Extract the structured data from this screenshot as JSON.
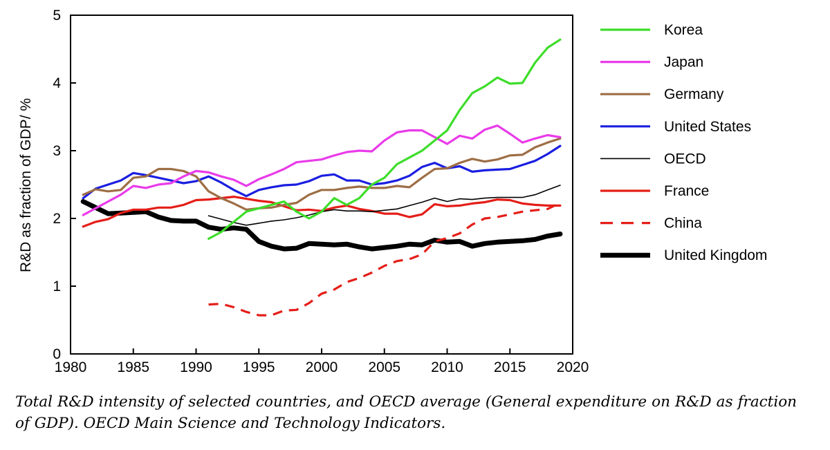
{
  "chart_data": {
    "type": "line",
    "title": "",
    "xlabel": "",
    "ylabel": "R&D as fraction of GDP/ %",
    "xlim": [
      1980,
      2020
    ],
    "ylim": [
      0,
      5
    ],
    "x_ticks": [
      "1980",
      "1985",
      "1990",
      "1995",
      "2000",
      "2005",
      "2010",
      "2015",
      "2020"
    ],
    "y_ticks": [
      "0",
      "1",
      "2",
      "3",
      "4",
      "5"
    ],
    "legend_position": "right",
    "series": [
      {
        "name": "Korea",
        "color": "#3ddd2a",
        "style": "solid",
        "width": "normal",
        "x": [
          1991,
          1992,
          1993,
          1994,
          1995,
          1996,
          1997,
          1998,
          1999,
          2000,
          2001,
          2002,
          2003,
          2004,
          2005,
          2006,
          2007,
          2008,
          2009,
          2010,
          2011,
          2012,
          2013,
          2014,
          2015,
          2016,
          2017,
          2018,
          2019
        ],
        "y": [
          1.7,
          1.8,
          1.95,
          2.1,
          2.15,
          2.2,
          2.25,
          2.1,
          2.0,
          2.1,
          2.3,
          2.2,
          2.3,
          2.5,
          2.6,
          2.8,
          2.9,
          3.0,
          3.15,
          3.3,
          3.6,
          3.85,
          3.95,
          4.08,
          3.99,
          4.0,
          4.3,
          4.52,
          4.64
        ]
      },
      {
        "name": "Japan",
        "color": "#e93be9",
        "style": "solid",
        "width": "normal",
        "x": [
          1981,
          1982,
          1983,
          1984,
          1985,
          1986,
          1987,
          1988,
          1989,
          1990,
          1991,
          1992,
          1993,
          1994,
          1995,
          1996,
          1997,
          1998,
          1999,
          2000,
          2001,
          2002,
          2003,
          2004,
          2005,
          2006,
          2007,
          2008,
          2009,
          2010,
          2011,
          2012,
          2013,
          2014,
          2015,
          2016,
          2017,
          2018,
          2019
        ],
        "y": [
          2.05,
          2.15,
          2.25,
          2.35,
          2.48,
          2.45,
          2.5,
          2.52,
          2.62,
          2.7,
          2.68,
          2.62,
          2.57,
          2.48,
          2.58,
          2.65,
          2.73,
          2.83,
          2.85,
          2.87,
          2.93,
          2.98,
          3.0,
          2.99,
          3.15,
          3.27,
          3.3,
          3.3,
          3.2,
          3.1,
          3.22,
          3.18,
          3.31,
          3.37,
          3.25,
          3.12,
          3.18,
          3.23,
          3.2
        ]
      },
      {
        "name": "Germany",
        "color": "#9e6e45",
        "style": "solid",
        "width": "normal",
        "x": [
          1981,
          1982,
          1983,
          1984,
          1985,
          1986,
          1987,
          1988,
          1989,
          1990,
          1991,
          1992,
          1993,
          1994,
          1995,
          1996,
          1997,
          1998,
          1999,
          2000,
          2001,
          2002,
          2003,
          2004,
          2005,
          2006,
          2007,
          2008,
          2009,
          2010,
          2011,
          2012,
          2013,
          2014,
          2015,
          2016,
          2017,
          2018,
          2019
        ],
        "y": [
          2.35,
          2.43,
          2.4,
          2.42,
          2.6,
          2.62,
          2.73,
          2.73,
          2.7,
          2.62,
          2.4,
          2.3,
          2.22,
          2.13,
          2.15,
          2.16,
          2.2,
          2.23,
          2.35,
          2.42,
          2.42,
          2.45,
          2.47,
          2.45,
          2.45,
          2.48,
          2.46,
          2.6,
          2.73,
          2.74,
          2.82,
          2.88,
          2.84,
          2.87,
          2.93,
          2.94,
          3.05,
          3.12,
          3.18
        ]
      },
      {
        "name": "United States",
        "color": "#1a1ee0",
        "style": "solid",
        "width": "normal",
        "x": [
          1981,
          1982,
          1983,
          1984,
          1985,
          1986,
          1987,
          1988,
          1989,
          1990,
          1991,
          1992,
          1993,
          1994,
          1995,
          1996,
          1997,
          1998,
          1999,
          2000,
          2001,
          2002,
          2003,
          2004,
          2005,
          2006,
          2007,
          2008,
          2009,
          2010,
          2011,
          2012,
          2013,
          2014,
          2015,
          2016,
          2017,
          2018,
          2019
        ],
        "y": [
          2.3,
          2.44,
          2.5,
          2.56,
          2.67,
          2.64,
          2.6,
          2.56,
          2.52,
          2.55,
          2.62,
          2.53,
          2.42,
          2.33,
          2.42,
          2.46,
          2.49,
          2.5,
          2.55,
          2.63,
          2.65,
          2.56,
          2.56,
          2.5,
          2.52,
          2.56,
          2.63,
          2.76,
          2.82,
          2.74,
          2.77,
          2.69,
          2.71,
          2.72,
          2.73,
          2.79,
          2.85,
          2.95,
          3.07
        ]
      },
      {
        "name": "OECD",
        "color": "#000000",
        "style": "solid",
        "width": "thin",
        "x": [
          1991,
          1992,
          1993,
          1994,
          1995,
          1996,
          1997,
          1998,
          1999,
          2000,
          2001,
          2002,
          2003,
          2004,
          2005,
          2006,
          2007,
          2008,
          2009,
          2010,
          2011,
          2012,
          2013,
          2014,
          2015,
          2016,
          2017,
          2018,
          2019
        ],
        "y": [
          2.04,
          1.99,
          1.94,
          1.9,
          1.93,
          1.96,
          1.98,
          2.01,
          2.05,
          2.1,
          2.13,
          2.11,
          2.11,
          2.1,
          2.12,
          2.14,
          2.19,
          2.24,
          2.3,
          2.25,
          2.29,
          2.28,
          2.3,
          2.31,
          2.31,
          2.31,
          2.35,
          2.42,
          2.49
        ]
      },
      {
        "name": "France",
        "color": "#e41e18",
        "style": "solid",
        "width": "normal",
        "x": [
          1981,
          1982,
          1983,
          1984,
          1985,
          1986,
          1987,
          1988,
          1989,
          1990,
          1991,
          1992,
          1993,
          1994,
          1995,
          1996,
          1997,
          1998,
          1999,
          2000,
          2001,
          2002,
          2003,
          2004,
          2005,
          2006,
          2007,
          2008,
          2009,
          2010,
          2011,
          2012,
          2013,
          2014,
          2015,
          2016,
          2017,
          2018,
          2019
        ],
        "y": [
          1.88,
          1.95,
          1.99,
          2.08,
          2.13,
          2.13,
          2.16,
          2.16,
          2.2,
          2.27,
          2.28,
          2.3,
          2.32,
          2.29,
          2.26,
          2.24,
          2.18,
          2.12,
          2.13,
          2.11,
          2.16,
          2.19,
          2.14,
          2.11,
          2.07,
          2.07,
          2.02,
          2.06,
          2.21,
          2.18,
          2.19,
          2.22,
          2.24,
          2.28,
          2.27,
          2.22,
          2.2,
          2.19,
          2.19
        ]
      },
      {
        "name": "China",
        "color": "#e41e18",
        "style": "dashed",
        "width": "normal",
        "x": [
          1991,
          1992,
          1993,
          1994,
          1995,
          1996,
          1997,
          1998,
          1999,
          2000,
          2001,
          2002,
          2003,
          2004,
          2005,
          2006,
          2007,
          2008,
          2009,
          2010,
          2011,
          2012,
          2013,
          2014,
          2015,
          2016,
          2017,
          2018,
          2019
        ],
        "y": [
          0.73,
          0.74,
          0.69,
          0.62,
          0.57,
          0.57,
          0.64,
          0.65,
          0.75,
          0.89,
          0.95,
          1.06,
          1.12,
          1.2,
          1.3,
          1.37,
          1.4,
          1.47,
          1.66,
          1.71,
          1.78,
          1.91,
          2.0,
          2.02,
          2.06,
          2.1,
          2.12,
          2.14,
          2.23
        ]
      },
      {
        "name": "United Kingdom",
        "color": "#000000",
        "style": "solid",
        "width": "thick",
        "x": [
          1981,
          1982,
          1983,
          1984,
          1985,
          1986,
          1987,
          1988,
          1989,
          1990,
          1991,
          1992,
          1993,
          1994,
          1995,
          1996,
          1997,
          1998,
          1999,
          2000,
          2001,
          2002,
          2003,
          2004,
          2005,
          2006,
          2007,
          2008,
          2009,
          2010,
          2011,
          2012,
          2013,
          2014,
          2015,
          2016,
          2017,
          2018,
          2019
        ],
        "y": [
          2.25,
          2.16,
          2.07,
          2.08,
          2.09,
          2.1,
          2.02,
          1.97,
          1.96,
          1.96,
          1.87,
          1.84,
          1.86,
          1.84,
          1.66,
          1.59,
          1.55,
          1.56,
          1.63,
          1.62,
          1.61,
          1.62,
          1.58,
          1.55,
          1.57,
          1.59,
          1.62,
          1.61,
          1.68,
          1.65,
          1.66,
          1.59,
          1.63,
          1.65,
          1.66,
          1.67,
          1.69,
          1.74,
          1.77
        ]
      }
    ]
  },
  "caption": "Total R&D intensity of selected countries, and OECD average (General expenditure on R&D as fraction of GDP). OECD Main Science and Technology Indicators."
}
